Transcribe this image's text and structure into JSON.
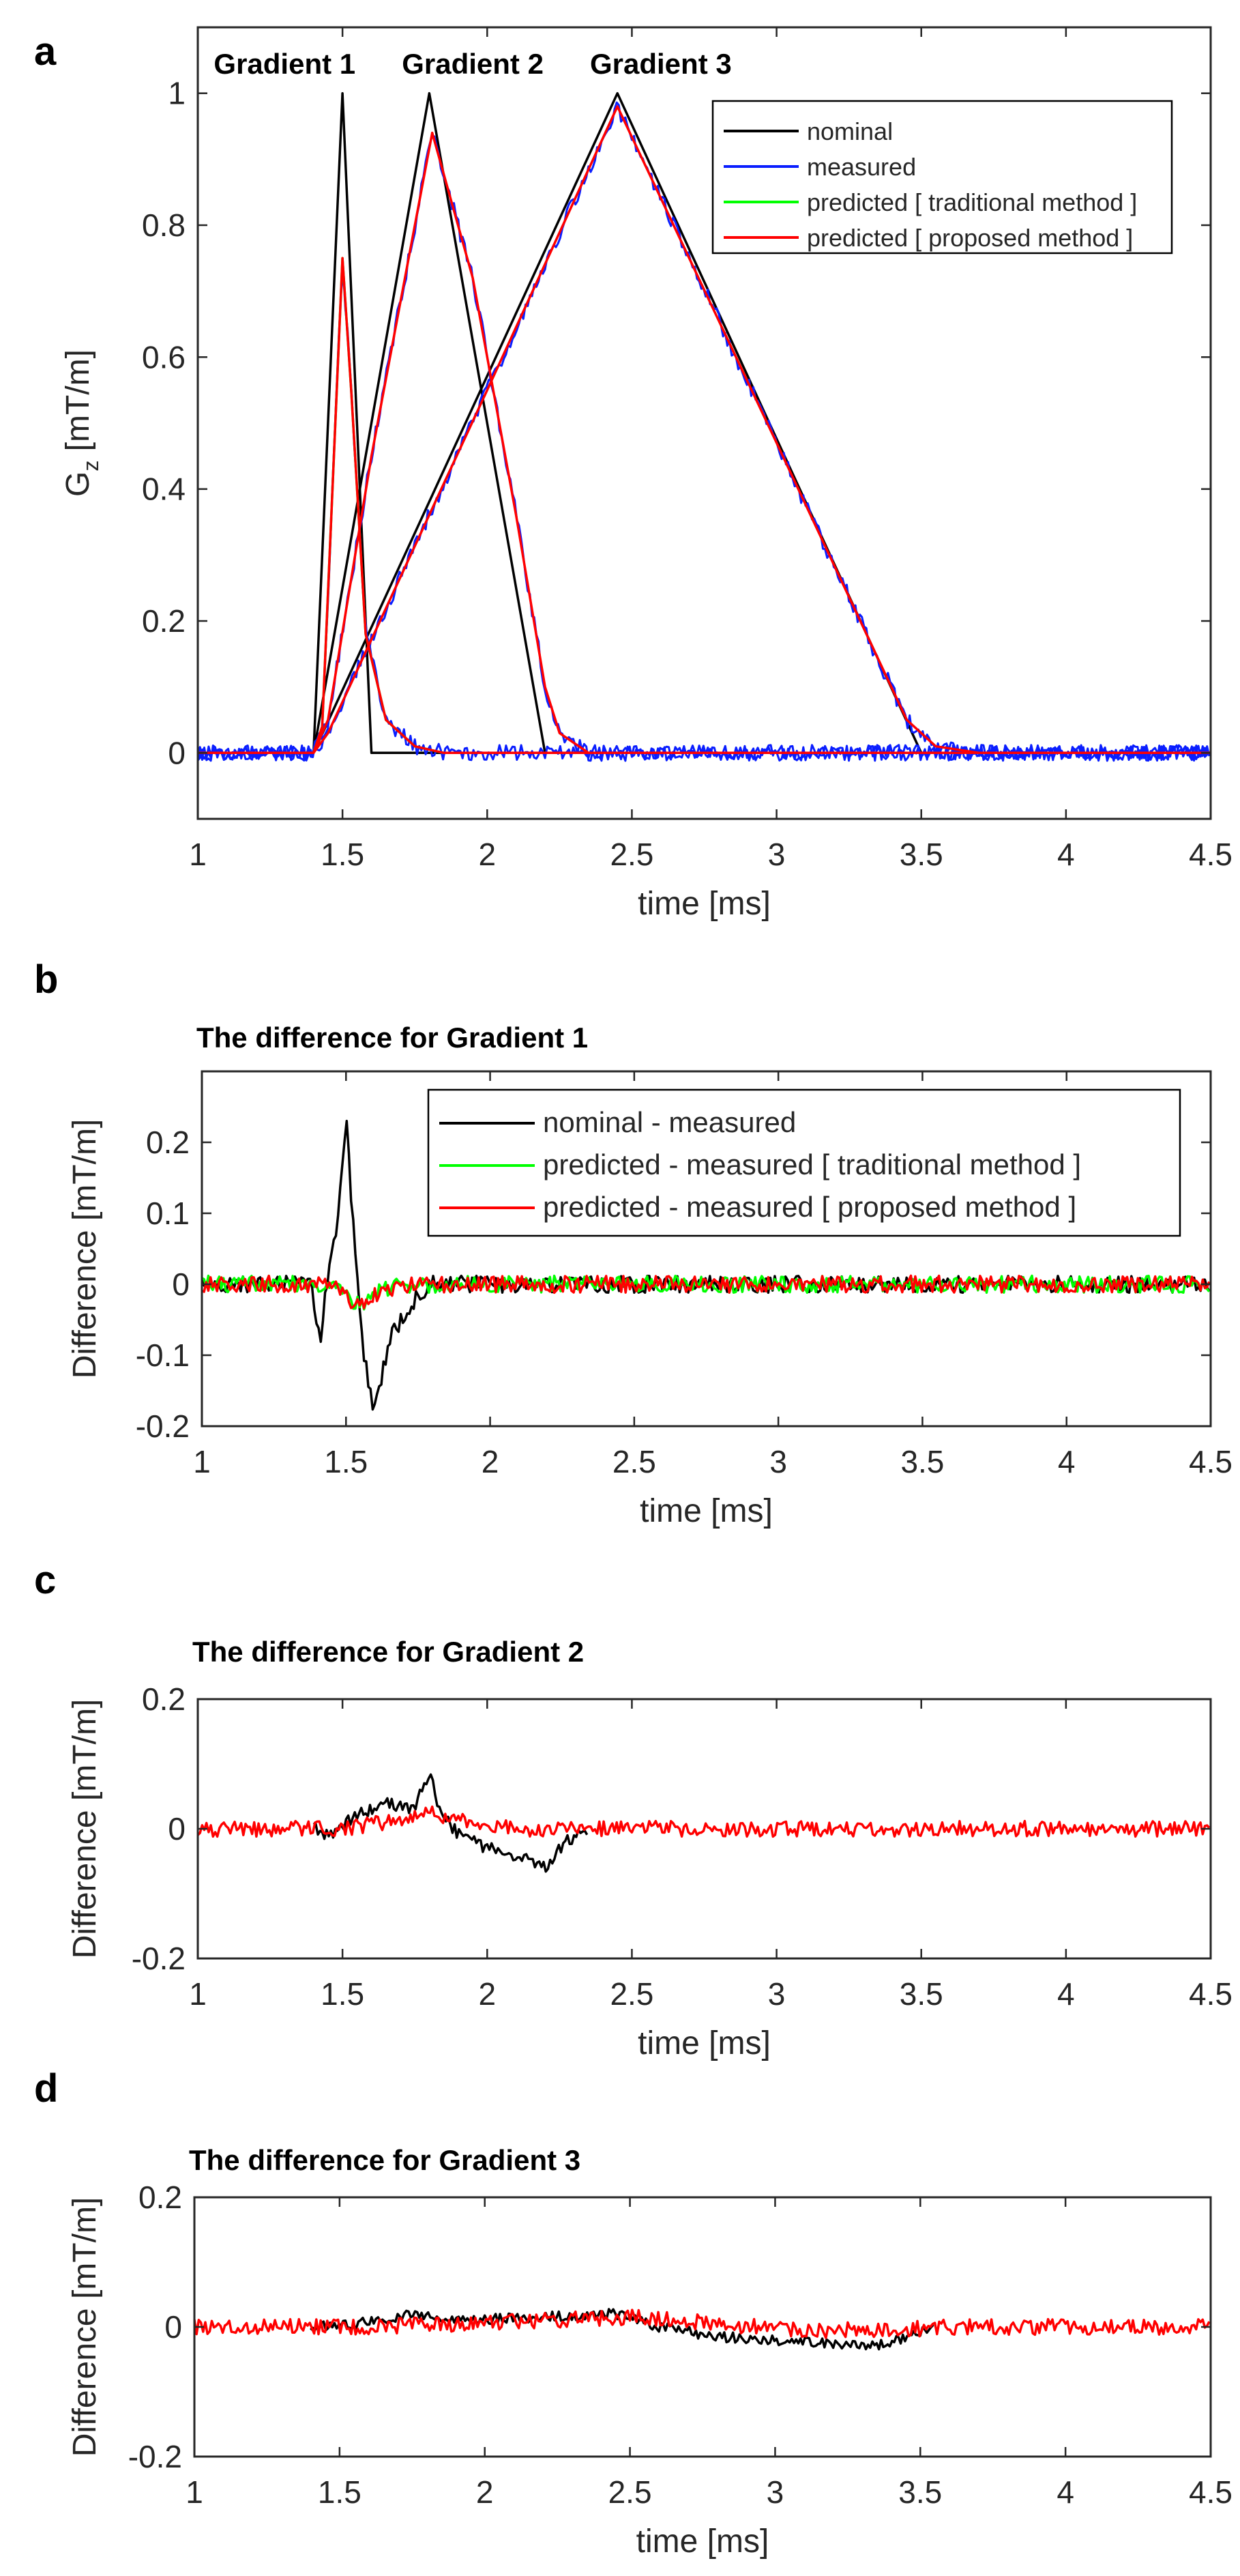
{
  "colors": {
    "nominal": "#000000",
    "measured": "#0a1eff",
    "traditional": "#00ff00",
    "proposed": "#ff0000",
    "axis": "#262626"
  },
  "chart_data": [
    {
      "id": "a",
      "panel_label": "a",
      "type": "line",
      "xlabel": "time [ms]",
      "ylabel": "G",
      "ylabel_sub": "z",
      "ylabel_rest": " [mT/m]",
      "xlim": [
        1,
        4.5
      ],
      "ylim": [
        -0.1,
        1.1
      ],
      "xticks": [
        1,
        1.5,
        2,
        2.5,
        3,
        3.5,
        4,
        4.5
      ],
      "xtick_labels": [
        "1",
        "1.5",
        "2",
        "2.5",
        "3",
        "3.5",
        "4",
        "4.5"
      ],
      "yticks": [
        0,
        0.2,
        0.4,
        0.6,
        0.8,
        1
      ],
      "ytick_labels": [
        "0",
        "0.2",
        "0.4",
        "0.6",
        "0.8",
        "1"
      ],
      "annotations": [
        {
          "text": "Gradient 1",
          "x": 1.3
        },
        {
          "text": "Gradient 2",
          "x": 1.95
        },
        {
          "text": "Gradient 3",
          "x": 2.6
        }
      ],
      "legend": [
        "nominal",
        "measured",
        "predicted [ traditional method ]",
        "predicted [ proposed method ]"
      ],
      "legend_location": "top-right",
      "series": [
        {
          "name": "nominal",
          "color_key": "nominal",
          "segments": [
            [
              [
                1,
                0
              ],
              [
                1.4,
                0
              ],
              [
                1.5,
                1
              ],
              [
                1.6,
                0
              ],
              [
                4.5,
                0
              ]
            ],
            [
              [
                1,
                0
              ],
              [
                1.4,
                0
              ],
              [
                1.8,
                1
              ],
              [
                2.2,
                0
              ],
              [
                4.5,
                0
              ]
            ],
            [
              [
                1,
                0
              ],
              [
                1.4,
                0
              ],
              [
                2.45,
                1
              ],
              [
                3.5,
                0
              ],
              [
                4.5,
                0
              ]
            ]
          ]
        },
        {
          "name": "measured",
          "color_key": "measured",
          "noise": 0.012,
          "segments": [
            [
              [
                1,
                0
              ],
              [
                1.4,
                0
              ],
              [
                1.43,
                0.04
              ],
              [
                1.5,
                0.75
              ],
              [
                1.53,
                0.55
              ],
              [
                1.58,
                0.18
              ],
              [
                1.65,
                0.05
              ],
              [
                1.75,
                0.01
              ],
              [
                1.85,
                0
              ],
              [
                4.5,
                0
              ]
            ],
            [
              [
                1,
                0
              ],
              [
                1.4,
                0
              ],
              [
                1.45,
                0.05
              ],
              [
                1.6,
                0.45
              ],
              [
                1.81,
                0.94
              ],
              [
                1.95,
                0.72
              ],
              [
                2.1,
                0.36
              ],
              [
                2.2,
                0.1
              ],
              [
                2.25,
                0.03
              ],
              [
                2.35,
                0
              ],
              [
                4.5,
                0
              ]
            ],
            [
              [
                1,
                0
              ],
              [
                1.4,
                0
              ],
              [
                1.45,
                0.03
              ],
              [
                2.0,
                0.55
              ],
              [
                2.45,
                0.98
              ],
              [
                3.0,
                0.47
              ],
              [
                3.45,
                0.05
              ],
              [
                3.55,
                0.01
              ],
              [
                3.7,
                0
              ],
              [
                4.5,
                0
              ]
            ]
          ]
        },
        {
          "name": "predicted [ traditional method ]",
          "color_key": "traditional",
          "segments": [
            [
              [
                1,
                0
              ],
              [
                1.4,
                0
              ],
              [
                1.43,
                0.04
              ],
              [
                1.5,
                0.75
              ],
              [
                1.53,
                0.55
              ],
              [
                1.58,
                0.18
              ],
              [
                1.65,
                0.05
              ],
              [
                1.75,
                0.01
              ],
              [
                1.85,
                0
              ],
              [
                4.5,
                0
              ]
            ]
          ]
        },
        {
          "name": "predicted [ proposed method ]",
          "color_key": "proposed",
          "segments": [
            [
              [
                1,
                0
              ],
              [
                1.4,
                0
              ],
              [
                1.43,
                0.04
              ],
              [
                1.5,
                0.75
              ],
              [
                1.53,
                0.55
              ],
              [
                1.58,
                0.18
              ],
              [
                1.65,
                0.05
              ],
              [
                1.75,
                0.01
              ],
              [
                1.85,
                0
              ],
              [
                4.5,
                0
              ]
            ],
            [
              [
                1,
                0
              ],
              [
                1.4,
                0
              ],
              [
                1.45,
                0.05
              ],
              [
                1.6,
                0.45
              ],
              [
                1.81,
                0.94
              ],
              [
                1.95,
                0.72
              ],
              [
                2.1,
                0.36
              ],
              [
                2.2,
                0.1
              ],
              [
                2.25,
                0.03
              ],
              [
                2.35,
                0
              ],
              [
                4.5,
                0
              ]
            ],
            [
              [
                1,
                0
              ],
              [
                1.4,
                0
              ],
              [
                1.45,
                0.03
              ],
              [
                2.0,
                0.55
              ],
              [
                2.45,
                0.98
              ],
              [
                3.0,
                0.47
              ],
              [
                3.45,
                0.05
              ],
              [
                3.55,
                0.01
              ],
              [
                3.7,
                0
              ],
              [
                4.5,
                0
              ]
            ]
          ]
        }
      ]
    },
    {
      "id": "b",
      "panel_label": "b",
      "type": "line",
      "title": "The difference for Gradient 1",
      "xlabel": "time [ms]",
      "ylabel": "Difference [mT/m]",
      "xlim": [
        1,
        4.5
      ],
      "ylim": [
        -0.2,
        0.3
      ],
      "xticks": [
        1,
        1.5,
        2,
        2.5,
        3,
        3.5,
        4,
        4.5
      ],
      "xtick_labels": [
        "1",
        "1.5",
        "2",
        "2.5",
        "3",
        "3.5",
        "4",
        "4.5"
      ],
      "yticks": [
        -0.2,
        -0.1,
        0,
        0.1,
        0.2
      ],
      "ytick_labels": [
        "-0.2",
        "-0.1",
        "0",
        "0.1",
        "0.2"
      ],
      "legend": [
        "nominal - measured",
        "predicted - measured  [ traditional method ]",
        "predicted - measured  [ proposed method ]"
      ],
      "legend_location": "top-right",
      "series": [
        {
          "name": "nominal - measured",
          "color_key": "nominal",
          "noise": 0.012,
          "segments": [
            [
              [
                1,
                0
              ],
              [
                1.38,
                0
              ],
              [
                1.41,
                -0.08
              ],
              [
                1.44,
                0.02
              ],
              [
                1.47,
                0.08
              ],
              [
                1.5,
                0.24
              ],
              [
                1.53,
                0.05
              ],
              [
                1.56,
                -0.1
              ],
              [
                1.6,
                -0.18
              ],
              [
                1.65,
                -0.08
              ],
              [
                1.72,
                -0.03
              ],
              [
                1.8,
                0
              ],
              [
                4.5,
                0
              ]
            ]
          ]
        },
        {
          "name": "predicted - measured  [ traditional method ]",
          "color_key": "traditional",
          "noise": 0.012,
          "segments": [
            [
              [
                1,
                0
              ],
              [
                1.45,
                0
              ],
              [
                1.5,
                -0.02
              ],
              [
                1.56,
                -0.03
              ],
              [
                1.62,
                -0.01
              ],
              [
                1.7,
                0
              ],
              [
                4.5,
                0
              ]
            ]
          ]
        },
        {
          "name": "predicted - measured  [ proposed method ]",
          "color_key": "proposed",
          "noise": 0.012,
          "segments": [
            [
              [
                1,
                0
              ],
              [
                1.45,
                0
              ],
              [
                1.5,
                -0.02
              ],
              [
                1.56,
                -0.03
              ],
              [
                1.62,
                -0.01
              ],
              [
                1.7,
                0
              ],
              [
                4.5,
                0
              ]
            ]
          ]
        }
      ]
    },
    {
      "id": "c",
      "panel_label": "c",
      "type": "line",
      "title": "The difference for Gradient 2",
      "xlabel": "time [ms]",
      "ylabel": "Difference [mT/m]",
      "xlim": [
        1,
        4.5
      ],
      "ylim": [
        -0.2,
        0.2
      ],
      "xticks": [
        1,
        1.5,
        2,
        2.5,
        3,
        3.5,
        4,
        4.5
      ],
      "xtick_labels": [
        "1",
        "1.5",
        "2",
        "2.5",
        "3",
        "3.5",
        "4",
        "4.5"
      ],
      "yticks": [
        -0.2,
        0,
        0.2
      ],
      "ytick_labels": [
        "-0.2",
        "0",
        "0.2"
      ],
      "series": [
        {
          "name": "nominal - measured",
          "color_key": "nominal",
          "noise": 0.01,
          "segments": [
            [
              [
                1.4,
                0
              ],
              [
                1.45,
                -0.01
              ],
              [
                1.55,
                0.02
              ],
              [
                1.65,
                0.04
              ],
              [
                1.75,
                0.03
              ],
              [
                1.8,
                0.09
              ],
              [
                1.83,
                0.03
              ],
              [
                1.9,
                -0.01
              ],
              [
                2.0,
                -0.03
              ],
              [
                2.1,
                -0.04
              ],
              [
                2.2,
                -0.06
              ],
              [
                2.27,
                -0.02
              ],
              [
                2.35,
                0
              ]
            ]
          ]
        },
        {
          "name": "predicted - measured  [ proposed method ]",
          "color_key": "proposed",
          "noise": 0.012,
          "segments": [
            [
              [
                1,
                0
              ],
              [
                1.5,
                0
              ],
              [
                1.65,
                0.01
              ],
              [
                1.8,
                0.025
              ],
              [
                1.95,
                0.01
              ],
              [
                2.1,
                0
              ],
              [
                4.5,
                0
              ]
            ]
          ]
        }
      ]
    },
    {
      "id": "d",
      "panel_label": "d",
      "type": "line",
      "title": "The difference for Gradient 3",
      "xlabel": "time [ms]",
      "ylabel": "Difference [mT/m]",
      "xlim": [
        1,
        4.5
      ],
      "ylim": [
        -0.2,
        0.2
      ],
      "xticks": [
        1,
        1.5,
        2,
        2.5,
        3,
        3.5,
        4,
        4.5
      ],
      "xtick_labels": [
        "1",
        "1.5",
        "2",
        "2.5",
        "3",
        "3.5",
        "4",
        "4.5"
      ],
      "yticks": [
        -0.2,
        0,
        0.2
      ],
      "ytick_labels": [
        "-0.2",
        "0",
        "0.2"
      ],
      "series": [
        {
          "name": "nominal - measured",
          "color_key": "nominal",
          "noise": 0.008,
          "segments": [
            [
              [
                1.4,
                0
              ],
              [
                1.55,
                0.005
              ],
              [
                1.75,
                0.02
              ],
              [
                1.9,
                0.01
              ],
              [
                2.2,
                0.015
              ],
              [
                2.45,
                0.02
              ],
              [
                2.6,
                0
              ],
              [
                2.8,
                -0.015
              ],
              [
                3.0,
                -0.02
              ],
              [
                3.2,
                -0.025
              ],
              [
                3.35,
                -0.03
              ],
              [
                3.45,
                -0.015
              ],
              [
                3.55,
                0
              ]
            ]
          ]
        },
        {
          "name": "predicted - measured  [ proposed method ]",
          "color_key": "proposed",
          "noise": 0.012,
          "segments": [
            [
              [
                1,
                0
              ],
              [
                1.6,
                0
              ],
              [
                1.9,
                0.005
              ],
              [
                2.2,
                0.01
              ],
              [
                2.5,
                0.015
              ],
              [
                2.8,
                0.005
              ],
              [
                3.1,
                -0.005
              ],
              [
                3.4,
                -0.005
              ],
              [
                3.6,
                0
              ],
              [
                4.5,
                0
              ]
            ]
          ]
        }
      ]
    }
  ]
}
